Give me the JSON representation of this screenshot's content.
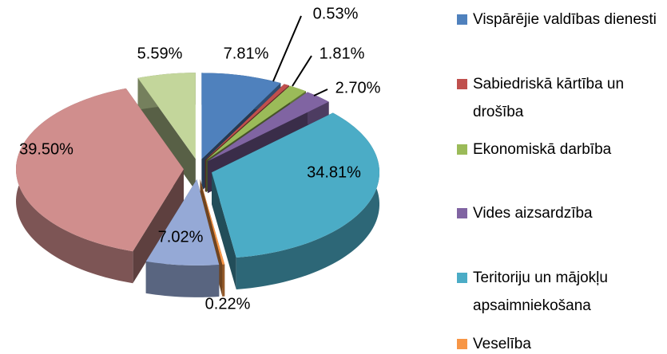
{
  "chart_data": {
    "type": "pie3d",
    "categories": [
      "Vispārējie valdības dienesti",
      "Sabiedriskā kārtība un drošība",
      "Ekonomiskā darbība",
      "Vides aizsardzība",
      "Teritoriju un mājokļu apsaimniekošana",
      "Veselība",
      null,
      null,
      null
    ],
    "values": [
      7.81,
      0.53,
      1.81,
      2.7,
      34.81,
      0.22,
      7.02,
      39.5,
      5.59
    ],
    "value_labels": [
      "7.81%",
      "0.53%",
      "1.81%",
      "2.70%",
      "34.81%",
      "0.22%",
      "7.02%",
      "39.50%",
      "5.59%"
    ],
    "colors": [
      "#4f81bd",
      "#c0504d",
      "#9bbb59",
      "#8064a2",
      "#4bacc6",
      "#f79646",
      "#95a9d6",
      "#d08e8d",
      "#c3d69b"
    ],
    "legend": "right"
  }
}
